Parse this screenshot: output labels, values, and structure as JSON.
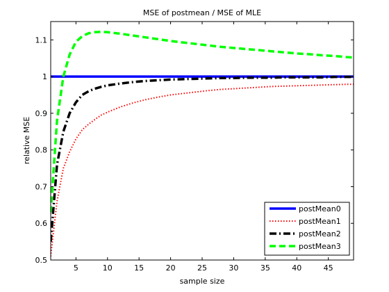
{
  "chart_data": {
    "type": "line",
    "title": "MSE of postmean / MSE of MLE",
    "xlabel": "sample size",
    "ylabel": "relative MSE",
    "xlim": [
      1,
      49
    ],
    "ylim": [
      0.5,
      1.15
    ],
    "xticks": [
      5,
      10,
      15,
      20,
      25,
      30,
      35,
      40,
      45
    ],
    "yticks": [
      0.5,
      0.6,
      0.7,
      0.8,
      0.9,
      1,
      1.1
    ],
    "ytick_labels": [
      "0.5",
      "0.6",
      "0.7",
      "0.8",
      "0.9",
      "1",
      "1.1"
    ],
    "grid": false,
    "legend_position": "bottom-right",
    "x": [
      1,
      2,
      3,
      4,
      5,
      6,
      7,
      8,
      9,
      10,
      12,
      14,
      16,
      18,
      20,
      22,
      24,
      26,
      28,
      30,
      32,
      34,
      36,
      38,
      40,
      42,
      44,
      46,
      48,
      49
    ],
    "series": [
      {
        "name": "postMean0",
        "color": "#0000ff",
        "style": "solid",
        "values": [
          1,
          1,
          1,
          1,
          1,
          1,
          1,
          1,
          1,
          1,
          1,
          1,
          1,
          1,
          1,
          1,
          1,
          1,
          1,
          1,
          1,
          1,
          1,
          1,
          1,
          1,
          1,
          1,
          1,
          1
        ]
      },
      {
        "name": "postMean1",
        "color": "#ff0000",
        "style": "dotted",
        "values": [
          0.51,
          0.66,
          0.75,
          0.795,
          0.83,
          0.855,
          0.87,
          0.883,
          0.895,
          0.903,
          0.917,
          0.928,
          0.937,
          0.944,
          0.95,
          0.954,
          0.958,
          0.962,
          0.965,
          0.967,
          0.969,
          0.971,
          0.973,
          0.974,
          0.975,
          0.976,
          0.977,
          0.978,
          0.979,
          0.979
        ]
      },
      {
        "name": "postMean2",
        "color": "#000000",
        "style": "dashdot",
        "values": [
          0.55,
          0.76,
          0.85,
          0.9,
          0.93,
          0.95,
          0.96,
          0.967,
          0.972,
          0.976,
          0.981,
          0.985,
          0.988,
          0.99,
          0.992,
          0.993,
          0.994,
          0.995,
          0.996,
          0.996,
          0.997,
          0.997,
          0.997,
          0.998,
          0.998,
          0.998,
          0.998,
          0.999,
          0.999,
          0.999
        ]
      },
      {
        "name": "postMean3",
        "color": "#00ff00",
        "style": "dashed",
        "values": [
          0.63,
          0.88,
          1.0,
          1.06,
          1.095,
          1.11,
          1.118,
          1.121,
          1.122,
          1.121,
          1.117,
          1.112,
          1.107,
          1.102,
          1.097,
          1.093,
          1.089,
          1.085,
          1.081,
          1.078,
          1.075,
          1.072,
          1.069,
          1.066,
          1.063,
          1.061,
          1.058,
          1.056,
          1.053,
          1.052
        ]
      }
    ]
  }
}
